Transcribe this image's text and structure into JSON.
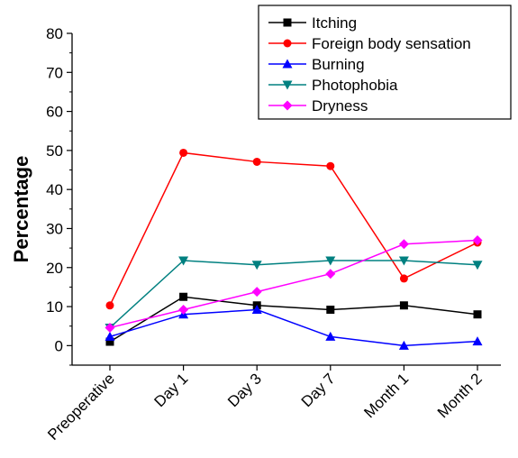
{
  "chart_data": {
    "type": "line",
    "title": "",
    "xlabel": "",
    "ylabel": "Percentage",
    "categories": [
      "Preoperative",
      "Day 1",
      "Day 3",
      "Day 7",
      "Month 1",
      "Month 2"
    ],
    "ylim": [
      -5,
      80
    ],
    "yticks": [
      0,
      10,
      20,
      30,
      40,
      50,
      60,
      70,
      80
    ],
    "grid": false,
    "legend_position": "top-right",
    "series": [
      {
        "name": "Itching",
        "color": "#000000",
        "marker": "square",
        "values": [
          1.0,
          12.5,
          10.3,
          9.2,
          10.3,
          8.0
        ]
      },
      {
        "name": "Foreign body sensation",
        "color": "#ff0000",
        "marker": "circle",
        "values": [
          10.3,
          49.4,
          47.1,
          46.0,
          17.2,
          26.4
        ]
      },
      {
        "name": "Burning",
        "color": "#0000ff",
        "marker": "triangle-up",
        "values": [
          2.3,
          8.0,
          9.2,
          2.3,
          0.0,
          1.1
        ]
      },
      {
        "name": "Photophobia",
        "color": "#008080",
        "marker": "triangle-down",
        "values": [
          4.6,
          21.8,
          20.7,
          21.8,
          21.8,
          20.7
        ]
      },
      {
        "name": "Dryness",
        "color": "#ff00ff",
        "marker": "diamond",
        "values": [
          4.6,
          9.2,
          13.8,
          18.4,
          26.0,
          27.0
        ]
      }
    ]
  }
}
